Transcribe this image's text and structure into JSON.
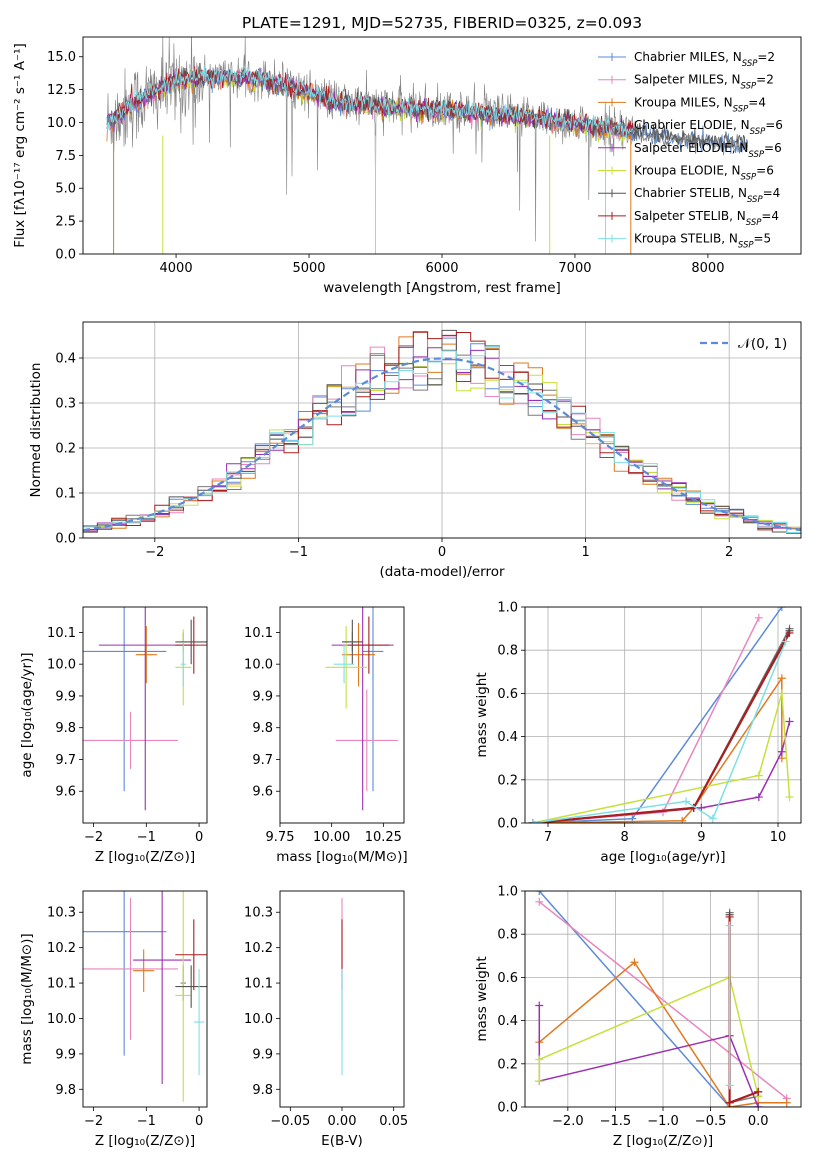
{
  "colors": {
    "cm": "#5b8bd8",
    "sm": "#e886bf",
    "km": "#e0781e",
    "ce": "#7a7a7a",
    "se": "#9b2fb1",
    "ke": "#c7e03e",
    "cs": "#555555",
    "ss": "#aa1e1e",
    "ks": "#7fdfe6",
    "normal": "#5b8bd8"
  },
  "models": [
    {
      "key": "cm",
      "label": "Chabrier MILES, N",
      "sub": "SSP",
      "n": "=2"
    },
    {
      "key": "sm",
      "label": "Salpeter MILES, N",
      "sub": "SSP",
      "n": "=2"
    },
    {
      "key": "km",
      "label": "Kroupa MILES, N",
      "sub": "SSP",
      "n": "=4"
    },
    {
      "key": "ce",
      "label": "Chabrier ELODIE, N",
      "sub": "SSP",
      "n": "=6"
    },
    {
      "key": "se",
      "label": "Salpeter ELODIE, N",
      "sub": "SSP",
      "n": "=6"
    },
    {
      "key": "ke",
      "label": "Kroupa ELODIE, N",
      "sub": "SSP",
      "n": "=6"
    },
    {
      "key": "cs",
      "label": "Chabrier STELIB, N",
      "sub": "SSP",
      "n": "=4"
    },
    {
      "key": "ss",
      "label": "Salpeter STELIB, N",
      "sub": "SSP",
      "n": "=4"
    },
    {
      "key": "ks",
      "label": "Kroupa STELIB, N",
      "sub": "SSP",
      "n": "=5"
    }
  ],
  "chart_data": [
    {
      "id": "spectrum",
      "type": "line",
      "title": "PLATE=1291, MJD=52735, FIBERID=0325, z=0.093",
      "xlabel": "wavelength [Angstrom, rest frame]",
      "ylabel": "Flux [fλ10⁻¹⁷ erg cm⁻² s⁻¹ A⁻¹]",
      "xlim": [
        3300,
        8700
      ],
      "ylim": [
        0,
        16.5
      ],
      "xticks": [
        4000,
        5000,
        6000,
        7000,
        8000
      ],
      "yticks": [
        0.0,
        2.5,
        5.0,
        7.5,
        10.0,
        12.5,
        15.0
      ],
      "data_trend": {
        "x": [
          3500,
          3700,
          4000,
          4300,
          4600,
          4900,
          5200,
          5600,
          6000,
          6400,
          6800,
          7200,
          7440
        ],
        "y": [
          10.0,
          11.5,
          13.0,
          13.6,
          13.5,
          12.8,
          11.6,
          11.2,
          11.0,
          10.7,
          10.2,
          9.6,
          9.4
        ]
      },
      "model_trend": {
        "x": [
          3500,
          3700,
          4000,
          4300,
          4600,
          4900,
          5200,
          5600,
          6000,
          6400,
          6800,
          7200,
          7600,
          8000,
          8300
        ],
        "y": [
          10.0,
          11.6,
          13.2,
          13.5,
          13.3,
          12.6,
          11.5,
          11.1,
          10.9,
          10.6,
          10.2,
          9.6,
          9.0,
          8.5,
          8.3
        ]
      }
    },
    {
      "id": "residuals",
      "type": "line",
      "xlabel": "(data-model)/error",
      "ylabel": "Normed distribution",
      "xlim": [
        -2.5,
        2.5
      ],
      "ylim": [
        0,
        0.48
      ],
      "xticks": [
        -2,
        -1,
        0,
        1,
        2
      ],
      "yticks": [
        0.0,
        0.1,
        0.2,
        0.3,
        0.4
      ],
      "legend": "𝒩(0, 1)",
      "histogram_bin_width": 0.1
    },
    {
      "id": "age_vs_Z",
      "type": "scatter",
      "xlabel": "Z [log₁₀(Z/Z⊙)]",
      "ylabel": "age  [log₁₀(age/yr)]",
      "xlim": [
        -2.2,
        0.15
      ],
      "ylim": [
        9.5,
        10.18
      ],
      "xticks": [
        -2,
        -1,
        0
      ],
      "yticks": [
        9.6,
        9.7,
        9.8,
        9.9,
        10.0,
        10.1
      ],
      "points": [
        {
          "key": "cm",
          "x": -1.42,
          "xerr": 0.8,
          "y": 10.04,
          "yerr": 0.44
        },
        {
          "key": "sm",
          "x": -1.3,
          "xerr": 0.9,
          "y": 9.76,
          "yerr": 0.09
        },
        {
          "key": "km",
          "x": -1.0,
          "xerr": 0.2,
          "y": 10.03,
          "yerr": 0.09
        },
        {
          "key": "ce",
          "x": -0.3,
          "xerr": 0.05,
          "y": 10.07,
          "yerr": 0.03
        },
        {
          "key": "se",
          "x": -1.02,
          "xerr": 0.88,
          "y": 10.06,
          "yerr": 0.52
        },
        {
          "key": "ke",
          "x": -0.3,
          "xerr": 0.15,
          "y": 9.99,
          "yerr": 0.12
        },
        {
          "key": "cs",
          "x": -0.15,
          "xerr": 0.3,
          "y": 10.07,
          "yerr": 0.07
        },
        {
          "key": "ss",
          "x": -0.1,
          "xerr": 0.35,
          "y": 10.06,
          "yerr": 0.09
        },
        {
          "key": "ks",
          "x": -0.3,
          "xerr": 0.05,
          "y": 10.0,
          "yerr": 0.07
        }
      ]
    },
    {
      "id": "age_vs_mass",
      "type": "scatter",
      "xlabel": "mass [log₁₀(M/M⊙)]",
      "xlim": [
        9.75,
        10.35
      ],
      "ylim": [
        9.5,
        10.18
      ],
      "xticks": [
        9.75,
        10.0,
        10.25
      ],
      "yticks": [
        9.6,
        9.7,
        9.8,
        9.9,
        10.0,
        10.1
      ],
      "points": [
        {
          "key": "cm",
          "x": 10.2,
          "xerr": 0.05,
          "y": 10.04,
          "yerr": 0.44
        },
        {
          "key": "sm",
          "x": 10.17,
          "xerr": 0.15,
          "y": 9.76,
          "yerr": 0.16
        },
        {
          "key": "km",
          "x": 10.13,
          "xerr": 0.08,
          "y": 10.03,
          "yerr": 0.1
        },
        {
          "key": "ce",
          "x": 10.1,
          "xerr": 0.05,
          "y": 10.07,
          "yerr": 0.03
        },
        {
          "key": "se",
          "x": 10.15,
          "xerr": 0.15,
          "y": 10.06,
          "yerr": 0.52
        },
        {
          "key": "ke",
          "x": 10.07,
          "xerr": 0.1,
          "y": 9.99,
          "yerr": 0.13
        },
        {
          "key": "cs",
          "x": 10.1,
          "xerr": 0.05,
          "y": 10.07,
          "yerr": 0.07
        },
        {
          "key": "ss",
          "x": 10.18,
          "xerr": 0.1,
          "y": 10.06,
          "yerr": 0.09
        },
        {
          "key": "ks",
          "x": 10.06,
          "xerr": 0.05,
          "y": 10.0,
          "yerr": 0.06
        }
      ]
    },
    {
      "id": "weight_vs_age",
      "type": "line",
      "xlabel": "age  [log₁₀(age/yr)]",
      "ylabel": "mass weight",
      "xlim": [
        6.7,
        10.3
      ],
      "ylim": [
        0,
        1.0
      ],
      "xticks": [
        7,
        8,
        9,
        10
      ],
      "yticks": [
        0.0,
        0.2,
        0.4,
        0.6,
        0.8,
        1.0
      ],
      "series": [
        {
          "key": "cm",
          "x": [
            6.8,
            8.1,
            10.05
          ],
          "y": [
            0.0,
            0.02,
            1.0
          ]
        },
        {
          "key": "sm",
          "x": [
            6.8,
            8.5,
            9.75
          ],
          "y": [
            0.0,
            0.05,
            0.95
          ]
        },
        {
          "key": "km",
          "x": [
            6.8,
            8.75,
            8.9,
            10.05,
            10.05
          ],
          "y": [
            0.0,
            0.01,
            0.07,
            0.67,
            0.3
          ]
        },
        {
          "key": "ce",
          "x": [
            6.8,
            8.9,
            10.15
          ],
          "y": [
            0.0,
            0.07,
            0.9
          ]
        },
        {
          "key": "se",
          "x": [
            6.8,
            9.0,
            9.75,
            10.05,
            10.15
          ],
          "y": [
            0.0,
            0.07,
            0.12,
            0.33,
            0.47
          ]
        },
        {
          "key": "ke",
          "x": [
            6.8,
            9.75,
            10.05,
            10.15
          ],
          "y": [
            0.0,
            0.22,
            0.6,
            0.12
          ]
        },
        {
          "key": "cs",
          "x": [
            6.8,
            8.9,
            10.15
          ],
          "y": [
            0.0,
            0.07,
            0.89
          ]
        },
        {
          "key": "ss",
          "x": [
            6.8,
            8.9,
            10.15
          ],
          "y": [
            0.0,
            0.07,
            0.88
          ]
        },
        {
          "key": "ks",
          "x": [
            6.8,
            8.8,
            9.15,
            10.1
          ],
          "y": [
            0.0,
            0.1,
            0.02,
            0.84
          ]
        }
      ]
    },
    {
      "id": "mass_vs_Z",
      "type": "scatter",
      "xlabel": "Z [log₁₀(Z/Z⊙)]",
      "ylabel": "mass [log₁₀(M/M⊙)]",
      "xlim": [
        -2.2,
        0.15
      ],
      "ylim": [
        9.75,
        10.36
      ],
      "xticks": [
        -2,
        -1,
        0
      ],
      "yticks": [
        9.8,
        9.9,
        10.0,
        10.1,
        10.2,
        10.3
      ],
      "points": [
        {
          "key": "cm",
          "x": -1.42,
          "xerr": 0.8,
          "y": 10.245,
          "yerr": 0.35
        },
        {
          "key": "sm",
          "x": -1.3,
          "xerr": 0.9,
          "y": 10.14,
          "yerr": 0.2
        },
        {
          "key": "km",
          "x": -1.05,
          "xerr": 0.2,
          "y": 10.135,
          "yerr": 0.06
        },
        {
          "key": "ce",
          "x": -0.3,
          "xerr": 0.05,
          "y": 10.1,
          "yerr": 0.05
        },
        {
          "key": "se",
          "x": -0.7,
          "xerr": 0.55,
          "y": 10.165,
          "yerr": 0.35
        },
        {
          "key": "ke",
          "x": -0.3,
          "xerr": 0.15,
          "y": 10.065,
          "yerr": 0.3
        },
        {
          "key": "cs",
          "x": -0.15,
          "xerr": 0.3,
          "y": 10.09,
          "yerr": 0.06
        },
        {
          "key": "ss",
          "x": -0.1,
          "xerr": 0.35,
          "y": 10.18,
          "yerr": 0.1
        },
        {
          "key": "ks",
          "x": 0.0,
          "xerr": 0.1,
          "y": 9.99,
          "yerr": 0.15
        }
      ]
    },
    {
      "id": "mass_vs_EBV",
      "type": "scatter",
      "xlabel": "E(B-V)",
      "xlim": [
        -0.06,
        0.06
      ],
      "ylim": [
        9.75,
        10.36
      ],
      "xticks": [
        -0.05,
        0.0,
        0.05
      ],
      "yticks": [
        9.8,
        9.9,
        10.0,
        10.1,
        10.2,
        10.3
      ],
      "points": [
        {
          "key": "sm",
          "x": 0.0,
          "xerr": 0.0,
          "y": 10.14,
          "yerr": 0.2
        },
        {
          "key": "ss",
          "x": 0.0,
          "xerr": 0.0,
          "y": 10.18,
          "yerr": 0.1
        },
        {
          "key": "ks",
          "x": 0.0,
          "xerr": 0.0,
          "y": 9.99,
          "yerr": 0.15
        }
      ]
    },
    {
      "id": "weight_vs_Z",
      "type": "line",
      "xlabel": "Z [log₁₀(Z/Z⊙)]",
      "ylabel": "mass weight",
      "xlim": [
        -2.45,
        0.45
      ],
      "ylim": [
        0,
        1.0
      ],
      "xticks": [
        -2.0,
        -1.5,
        -1.0,
        -0.5,
        0.0
      ],
      "yticks": [
        0.0,
        0.2,
        0.4,
        0.6,
        0.8,
        1.0
      ],
      "series": [
        {
          "key": "cm",
          "x": [
            -2.3,
            -0.3,
            0.0
          ],
          "y": [
            1.0,
            0.0,
            0.0
          ]
        },
        {
          "key": "sm",
          "x": [
            -2.3,
            0.3
          ],
          "y": [
            0.95,
            0.04
          ]
        },
        {
          "key": "km",
          "x": [
            -2.3,
            -1.3,
            -0.3,
            0.0,
            0.3
          ],
          "y": [
            0.3,
            0.67,
            0.0,
            0.02,
            0.02
          ]
        },
        {
          "key": "ce",
          "x": [
            -0.3,
            -0.3,
            0.0
          ],
          "y": [
            0.9,
            0.02,
            0.05
          ]
        },
        {
          "key": "se",
          "x": [
            -2.3,
            -2.3,
            -0.3,
            0.0
          ],
          "y": [
            0.47,
            0.12,
            0.33,
            0.0
          ]
        },
        {
          "key": "ke",
          "x": [
            -2.3,
            -2.3,
            -0.3,
            -0.3,
            0.0
          ],
          "y": [
            0.12,
            0.22,
            0.6,
            0.6,
            0.05
          ]
        },
        {
          "key": "cs",
          "x": [
            -0.3,
            -0.3,
            0.0
          ],
          "y": [
            0.89,
            0.02,
            0.07
          ]
        },
        {
          "key": "ss",
          "x": [
            -0.3,
            -0.3,
            0.0
          ],
          "y": [
            0.88,
            0.02,
            0.07
          ]
        },
        {
          "key": "ks",
          "x": [
            -0.3,
            -0.3
          ],
          "y": [
            0.84,
            0.1
          ]
        }
      ]
    }
  ]
}
